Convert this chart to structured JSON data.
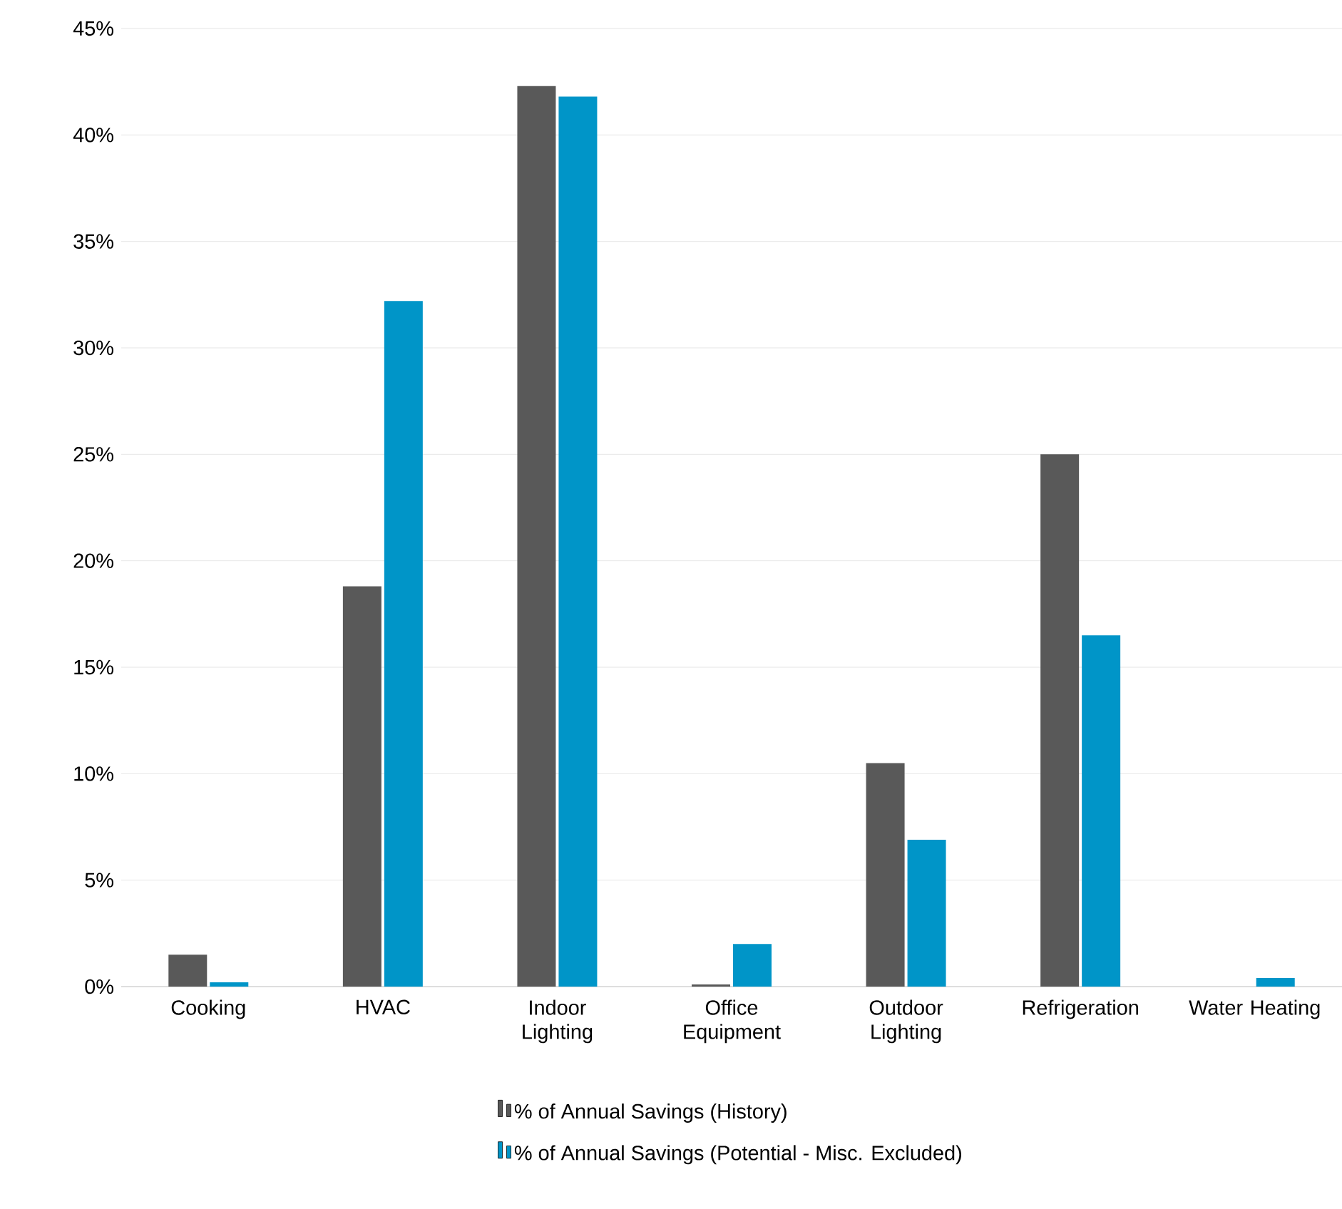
{
  "chart_data": {
    "type": "bar",
    "categories": [
      "Cooking",
      "HVAC",
      "Indoor Lighting",
      "Office Equipment",
      "Outdoor Lighting",
      "Refrigeration",
      "Water Heating"
    ],
    "series": [
      {
        "name": "% of Annual Savings (History)",
        "color": "#595959",
        "values": [
          1.5,
          18.8,
          42.3,
          0.1,
          10.5,
          25.0,
          0
        ]
      },
      {
        "name": "% of Annual Savings (Potential - Misc. Excluded)",
        "color": "#0095c8",
        "values": [
          0.2,
          32.2,
          41.8,
          2.0,
          6.9,
          16.5,
          0.4
        ]
      }
    ],
    "ylim": [
      0,
      45
    ],
    "yticks": [
      {
        "value": 0,
        "label": "0%"
      },
      {
        "value": 5,
        "label": "5%"
      },
      {
        "value": 10,
        "label": "10%"
      },
      {
        "value": 15,
        "label": "15%"
      },
      {
        "value": 20,
        "label": "20%"
      },
      {
        "value": 25,
        "label": "25%"
      },
      {
        "value": 30,
        "label": "30%"
      },
      {
        "value": 35,
        "label": "35%"
      },
      {
        "value": 40,
        "label": "40%"
      },
      {
        "value": 45,
        "label": "45%"
      }
    ],
    "grid": "y",
    "legend": "bottom"
  }
}
